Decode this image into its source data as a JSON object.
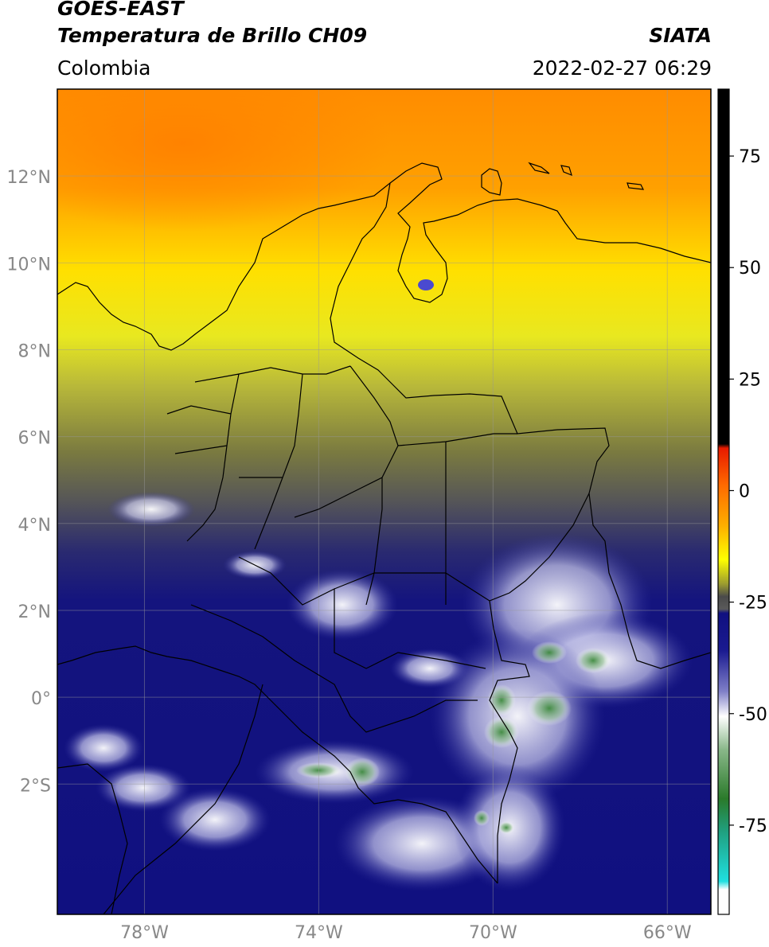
{
  "header": {
    "satellite": "GOES-EAST",
    "product": "Temperatura de Brillo CH09",
    "agency": "SIATA",
    "region": "Colombia",
    "timestamp": "2022-02-27 06:29"
  },
  "map": {
    "lon_range": [
      -80,
      -65
    ],
    "lat_range": [
      -5,
      14
    ],
    "lat_ticks": [
      {
        "value": 12,
        "label": "12°N"
      },
      {
        "value": 10,
        "label": "10°N"
      },
      {
        "value": 8,
        "label": "8°N"
      },
      {
        "value": 6,
        "label": "6°N"
      },
      {
        "value": 4,
        "label": "4°N"
      },
      {
        "value": 2,
        "label": "2°N"
      },
      {
        "value": 0,
        "label": "0°"
      },
      {
        "value": -2,
        "label": "2°S"
      }
    ],
    "lon_ticks": [
      {
        "value": -78,
        "label": "78°W"
      },
      {
        "value": -74,
        "label": "74°W"
      },
      {
        "value": -70,
        "label": "70°W"
      },
      {
        "value": -66,
        "label": "66°W"
      }
    ],
    "grid": true
  },
  "colorbar": {
    "range": [
      -95,
      90
    ],
    "ticks": [
      {
        "value": 75,
        "label": "75"
      },
      {
        "value": 50,
        "label": "50"
      },
      {
        "value": 25,
        "label": "25"
      },
      {
        "value": 0,
        "label": "0"
      },
      {
        "value": -25,
        "label": "-25"
      },
      {
        "value": -50,
        "label": "-50"
      },
      {
        "value": -75,
        "label": "-75"
      }
    ],
    "colors": {
      "black": "#000000",
      "red": "#e81a00",
      "orange": "#ff8c00",
      "yellow": "#ffff00",
      "olive": "#8a8a2a",
      "gray": "#5a5a58",
      "navy": "#101080",
      "white": "#ffffff",
      "green": "#3a8a3a",
      "cyan": "#20d8d8"
    }
  }
}
